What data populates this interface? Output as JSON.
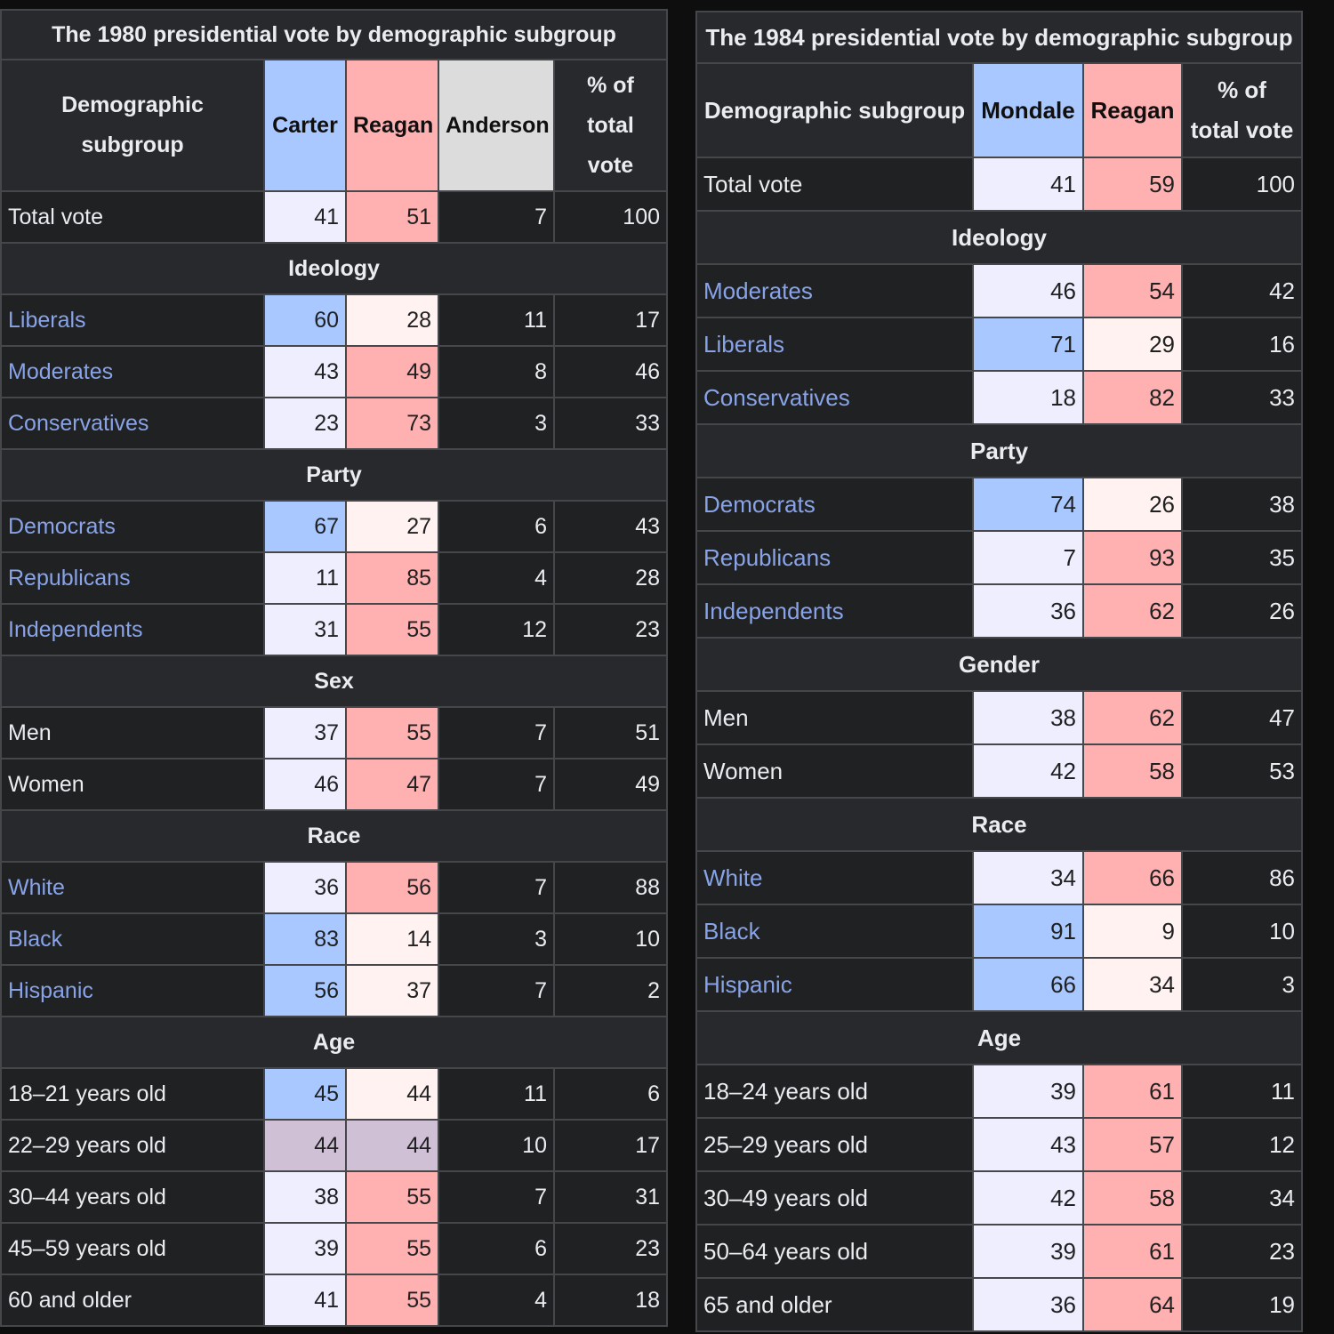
{
  "colors": {
    "dem_strong": "#a8c8ff",
    "dem_light": "#eeeeff",
    "rep_strong": "#ffb0b0",
    "rep_light": "#fff2f0",
    "tie": "#cfc0d5",
    "third": "#dcdcdc",
    "link": "#88a3e8"
  },
  "tables": [
    {
      "title": "The 1980 presidential vote by demographic subgroup",
      "headers": [
        "Demographic subgroup",
        "Carter",
        "Reagan",
        "Anderson",
        "% of total vote"
      ],
      "header_lines": [
        [
          "Demographic",
          "subgroup"
        ],
        null,
        null,
        null,
        [
          "% of",
          "total",
          "vote"
        ]
      ],
      "rows": [
        {
          "label": "Total vote",
          "link": false,
          "values": [
            41,
            51,
            7,
            100
          ]
        },
        {
          "section": "Ideology"
        },
        {
          "label": "Liberals",
          "link": true,
          "values": [
            60,
            28,
            11,
            17
          ]
        },
        {
          "label": "Moderates",
          "link": true,
          "values": [
            43,
            49,
            8,
            46
          ]
        },
        {
          "label": "Conservatives",
          "link": true,
          "values": [
            23,
            73,
            3,
            33
          ]
        },
        {
          "section": "Party"
        },
        {
          "label": "Democrats",
          "link": true,
          "values": [
            67,
            27,
            6,
            43
          ]
        },
        {
          "label": "Republicans",
          "link": true,
          "values": [
            11,
            85,
            4,
            28
          ]
        },
        {
          "label": "Independents",
          "link": true,
          "values": [
            31,
            55,
            12,
            23
          ]
        },
        {
          "section": "Sex"
        },
        {
          "label": "Men",
          "link": false,
          "values": [
            37,
            55,
            7,
            51
          ]
        },
        {
          "label": "Women",
          "link": false,
          "values": [
            46,
            47,
            7,
            49
          ]
        },
        {
          "section": "Race"
        },
        {
          "label": "White",
          "link": true,
          "values": [
            36,
            56,
            7,
            88
          ]
        },
        {
          "label": "Black",
          "link": true,
          "values": [
            83,
            14,
            3,
            10
          ]
        },
        {
          "label": "Hispanic",
          "link": true,
          "values": [
            56,
            37,
            7,
            2
          ]
        },
        {
          "section": "Age"
        },
        {
          "label": "18–21 years old",
          "link": false,
          "values": [
            45,
            44,
            11,
            6
          ]
        },
        {
          "label": "22–29 years old",
          "link": false,
          "values": [
            44,
            44,
            10,
            17
          ]
        },
        {
          "label": "30–44 years old",
          "link": false,
          "values": [
            38,
            55,
            7,
            31
          ]
        },
        {
          "label": "45–59 years old",
          "link": false,
          "values": [
            39,
            55,
            6,
            23
          ]
        },
        {
          "label": "60 and older",
          "link": false,
          "values": [
            41,
            55,
            4,
            18
          ]
        }
      ]
    },
    {
      "title": "The 1984 presidential vote by demographic subgroup",
      "headers": [
        "Demographic subgroup",
        "Mondale",
        "Reagan",
        "% of total vote"
      ],
      "header_lines": [
        null,
        null,
        null,
        [
          "% of",
          "total vote"
        ]
      ],
      "rows": [
        {
          "label": "Total vote",
          "link": false,
          "values": [
            41,
            59,
            100
          ]
        },
        {
          "section": "Ideology"
        },
        {
          "label": "Moderates",
          "link": true,
          "values": [
            46,
            54,
            42
          ]
        },
        {
          "label": "Liberals",
          "link": true,
          "values": [
            71,
            29,
            16
          ]
        },
        {
          "label": "Conservatives",
          "link": true,
          "values": [
            18,
            82,
            33
          ]
        },
        {
          "section": "Party"
        },
        {
          "label": "Democrats",
          "link": true,
          "values": [
            74,
            26,
            38
          ]
        },
        {
          "label": "Republicans",
          "link": true,
          "values": [
            7,
            93,
            35
          ]
        },
        {
          "label": "Independents",
          "link": true,
          "values": [
            36,
            62,
            26
          ]
        },
        {
          "section": "Gender"
        },
        {
          "label": "Men",
          "link": false,
          "values": [
            38,
            62,
            47
          ]
        },
        {
          "label": "Women",
          "link": false,
          "values": [
            42,
            58,
            53
          ]
        },
        {
          "section": "Race"
        },
        {
          "label": "White",
          "link": true,
          "values": [
            34,
            66,
            86
          ]
        },
        {
          "label": "Black",
          "link": true,
          "values": [
            91,
            9,
            10
          ]
        },
        {
          "label": "Hispanic",
          "link": true,
          "values": [
            66,
            34,
            3
          ]
        },
        {
          "section": "Age"
        },
        {
          "label": "18–24 years old",
          "link": false,
          "values": [
            39,
            61,
            11
          ]
        },
        {
          "label": "25–29 years old",
          "link": false,
          "values": [
            43,
            57,
            12
          ]
        },
        {
          "label": "30–49 years old",
          "link": false,
          "values": [
            42,
            58,
            34
          ]
        },
        {
          "label": "50–64 years old",
          "link": false,
          "values": [
            39,
            61,
            23
          ]
        },
        {
          "label": "65 and older",
          "link": false,
          "values": [
            36,
            64,
            19
          ]
        }
      ]
    }
  ]
}
